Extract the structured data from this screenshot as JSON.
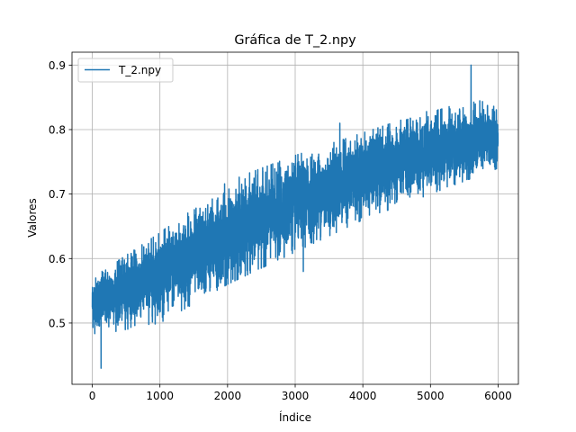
{
  "chart_data": {
    "type": "line",
    "title": "Gráfica de T_2.npy",
    "xlabel": "Índice",
    "ylabel": "Valores",
    "xlim": [
      -300,
      6300
    ],
    "ylim": [
      0.405,
      0.92
    ],
    "xticks": [
      0,
      1000,
      2000,
      3000,
      4000,
      5000,
      6000
    ],
    "xtick_labels": [
      "0",
      "1000",
      "2000",
      "3000",
      "4000",
      "5000",
      "6000"
    ],
    "yticks": [
      0.5,
      0.6,
      0.7,
      0.8,
      0.9
    ],
    "ytick_labels": [
      "0.5",
      "0.6",
      "0.7",
      "0.8",
      "0.9"
    ],
    "grid": true,
    "legend": {
      "position": "upper-left",
      "entries": [
        "T_2.npy"
      ]
    },
    "series": [
      {
        "name": "T_2.npy",
        "color": "#1f77b4",
        "n_points": 6000,
        "trend": {
          "x": [
            0,
            1000,
            2000,
            3000,
            4000,
            5000,
            6000
          ],
          "y": [
            0.53,
            0.575,
            0.635,
            0.685,
            0.73,
            0.765,
            0.79
          ]
        },
        "band": {
          "x": [
            0,
            1000,
            2000,
            3000,
            4000,
            5000,
            6000
          ],
          "upper": [
            0.57,
            0.64,
            0.72,
            0.76,
            0.795,
            0.83,
            0.85
          ],
          "lower": [
            0.48,
            0.5,
            0.56,
            0.61,
            0.66,
            0.7,
            0.74
          ]
        },
        "extremes": [
          {
            "x": 130,
            "y": 0.43
          },
          {
            "x": 3120,
            "y": 0.58
          },
          {
            "x": 3660,
            "y": 0.81
          },
          {
            "x": 5600,
            "y": 0.9
          }
        ]
      }
    ]
  }
}
